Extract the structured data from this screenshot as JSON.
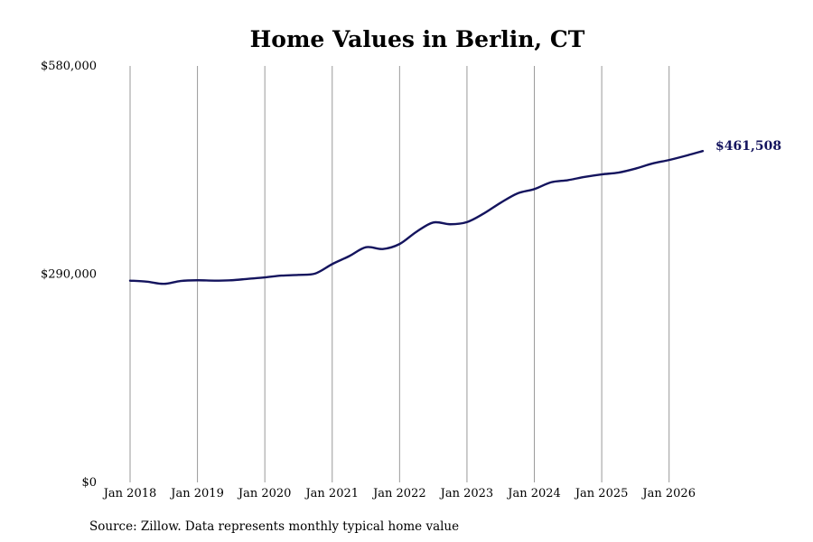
{
  "chart_data": {
    "type": "line",
    "title": "Home Values in Berlin, CT",
    "subtitle": "",
    "xlabel": "",
    "ylabel": "",
    "ylim": [
      0,
      580000
    ],
    "xlim": [
      "2018-01",
      "2026-07"
    ],
    "y_ticks": [
      {
        "value": 0,
        "label": "$0"
      },
      {
        "value": 290000,
        "label": "$290,000"
      },
      {
        "value": 580000,
        "label": "$580,000"
      }
    ],
    "x_ticks": [
      {
        "date": "2018-01",
        "label": "Jan 2018"
      },
      {
        "date": "2019-01",
        "label": "Jan 2019"
      },
      {
        "date": "2020-01",
        "label": "Jan 2020"
      },
      {
        "date": "2021-01",
        "label": "Jan 2021"
      },
      {
        "date": "2022-01",
        "label": "Jan 2022"
      },
      {
        "date": "2023-01",
        "label": "Jan 2023"
      },
      {
        "date": "2024-01",
        "label": "Jan 2024"
      },
      {
        "date": "2025-01",
        "label": "Jan 2025"
      },
      {
        "date": "2026-01",
        "label": "Jan 2026"
      }
    ],
    "grid": {
      "vertical": true,
      "horizontal": false
    },
    "legend": "none",
    "series": [
      {
        "color": "#14145e",
        "points": [
          {
            "x": "2018-01",
            "y": 281000
          },
          {
            "x": "2018-04",
            "y": 279500
          },
          {
            "x": "2018-07",
            "y": 276500
          },
          {
            "x": "2018-10",
            "y": 280500
          },
          {
            "x": "2019-01",
            "y": 281500
          },
          {
            "x": "2019-04",
            "y": 281000
          },
          {
            "x": "2019-07",
            "y": 281500
          },
          {
            "x": "2019-10",
            "y": 283500
          },
          {
            "x": "2020-01",
            "y": 285500
          },
          {
            "x": "2020-04",
            "y": 288000
          },
          {
            "x": "2020-07",
            "y": 289000
          },
          {
            "x": "2020-10",
            "y": 291000
          },
          {
            "x": "2021-01",
            "y": 304000
          },
          {
            "x": "2021-04",
            "y": 315000
          },
          {
            "x": "2021-07",
            "y": 327500
          },
          {
            "x": "2021-10",
            "y": 325000
          },
          {
            "x": "2022-01",
            "y": 332000
          },
          {
            "x": "2022-04",
            "y": 349000
          },
          {
            "x": "2022-07",
            "y": 362000
          },
          {
            "x": "2022-10",
            "y": 359500
          },
          {
            "x": "2023-01",
            "y": 362500
          },
          {
            "x": "2023-04",
            "y": 374500
          },
          {
            "x": "2023-07",
            "y": 389500
          },
          {
            "x": "2023-10",
            "y": 402500
          },
          {
            "x": "2024-01",
            "y": 408500
          },
          {
            "x": "2024-04",
            "y": 418000
          },
          {
            "x": "2024-07",
            "y": 421000
          },
          {
            "x": "2024-10",
            "y": 425500
          },
          {
            "x": "2025-01",
            "y": 429000
          },
          {
            "x": "2025-04",
            "y": 431500
          },
          {
            "x": "2025-07",
            "y": 437000
          },
          {
            "x": "2025-10",
            "y": 444000
          },
          {
            "x": "2026-01",
            "y": 449000
          },
          {
            "x": "2026-04",
            "y": 455000
          },
          {
            "x": "2026-07",
            "y": 461508
          }
        ]
      }
    ],
    "end_label": "$461,508",
    "source_note": "Source: Zillow. Data represents monthly typical home value"
  }
}
